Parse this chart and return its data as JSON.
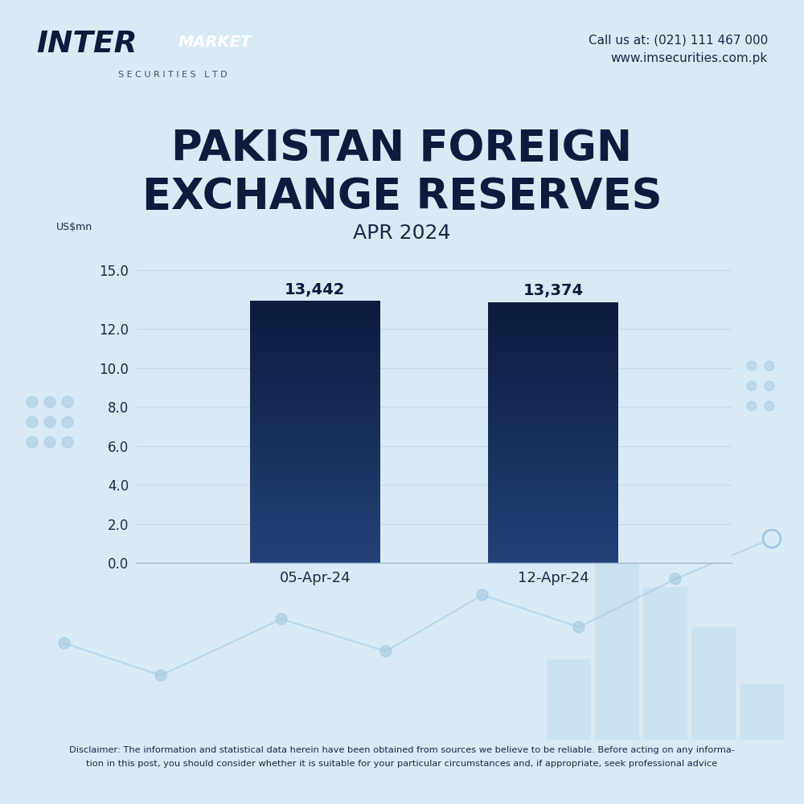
{
  "background_color": "#daeaf5",
  "title_line1": "PAKISTAN FOREIGN",
  "title_line2": "EXCHANGE RESERVES",
  "subtitle": "APR 2024",
  "categories": [
    "05-Apr-24",
    "12-Apr-24"
  ],
  "values": [
    13.442,
    13.374
  ],
  "bar_labels": [
    "13,442",
    "13,374"
  ],
  "ylabel": "US$mn",
  "ylim": [
    0,
    16.5
  ],
  "yticks": [
    0.0,
    2.0,
    4.0,
    6.0,
    8.0,
    10.0,
    12.0,
    15.0
  ],
  "bar_color_top": "#0d1b3e",
  "bar_color_bottom": "#1e3a6e",
  "title_color": "#0d1b3e",
  "subtitle_color": "#1a2a4a",
  "tick_color": "#1a2a4a",
  "contact_line1": "Call us at: (021) 111 467 000",
  "contact_line2": "www.imsecurities.com.pk",
  "disclaimer_line1": "Disclaimer: The information and statistical data herein have been obtained from sources we believe to be reliable. Before acting on any informa-",
  "disclaimer_line2": "tion in this post, you should consider whether it is suitable for your particular circumstances and, if appropriate, seek professional advice"
}
